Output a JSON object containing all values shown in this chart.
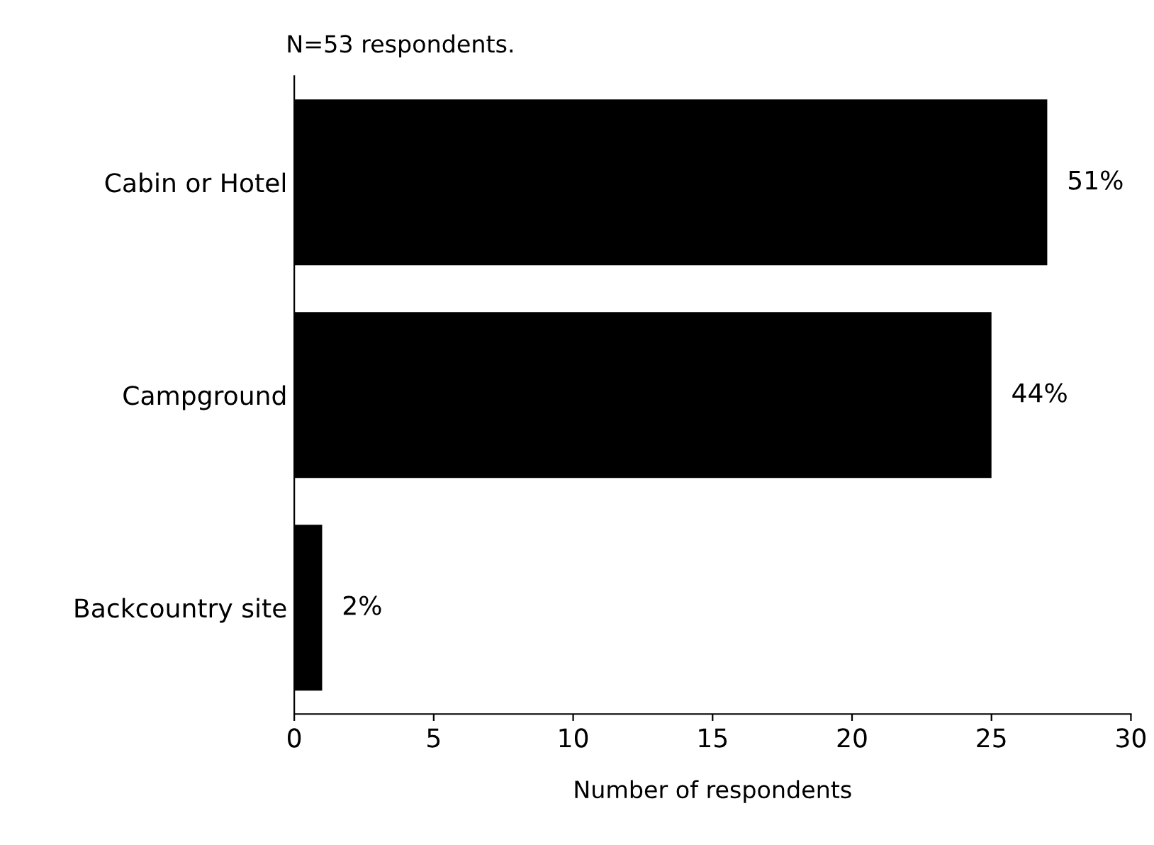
{
  "chart_data": {
    "type": "bar",
    "orientation": "horizontal",
    "title": "N=53 respondents.",
    "xlabel": "Number of respondents",
    "categories": [
      "Cabin or Hotel",
      "Campground",
      "Backcountry site"
    ],
    "values": [
      27,
      25,
      1
    ],
    "color": "#000000",
    "annotations": [
      {
        "text": "51%",
        "x": 27,
        "y": "Cabin or Hotel"
      },
      {
        "text": "44%",
        "x": 25,
        "y": "Campground"
      },
      {
        "text": "2%",
        "x": 1,
        "y": "Backcountry site"
      }
    ],
    "xlim": [
      0,
      30
    ],
    "xticks": [
      0,
      5,
      10,
      15,
      20,
      25,
      30
    ],
    "grid": false,
    "legend": false
  }
}
